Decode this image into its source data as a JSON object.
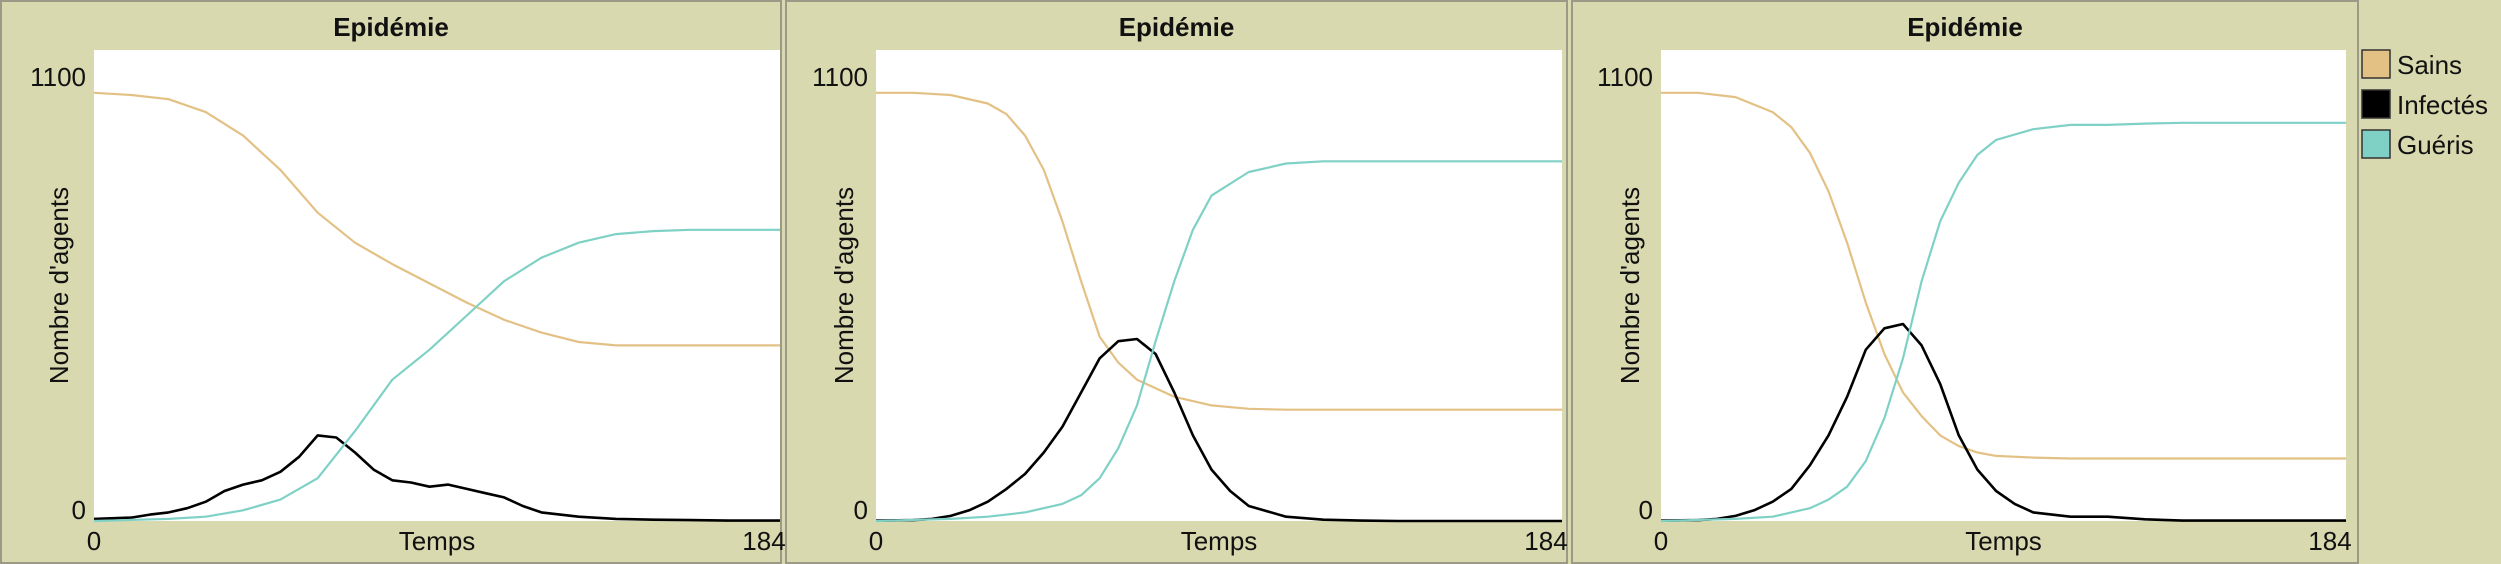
{
  "chart_data": [
    {
      "type": "line",
      "title": "Epidémie",
      "xlabel": "Temps",
      "ylabel": "Nombre d'agents",
      "xlim": [
        0,
        184
      ],
      "ylim": [
        0,
        1100
      ],
      "x_ticks": [
        "0",
        "184"
      ],
      "y_ticks": [
        "0",
        "1100"
      ],
      "series": [
        {
          "color": "#e3c185",
          "x": [
            0,
            10,
            20,
            30,
            40,
            50,
            60,
            70,
            80,
            90,
            100,
            110,
            120,
            130,
            140,
            150,
            160,
            170,
            184
          ],
          "values": [
            1000,
            995,
            985,
            955,
            900,
            820,
            720,
            650,
            600,
            555,
            510,
            470,
            440,
            418,
            410,
            410,
            410,
            410,
            410
          ]
        },
        {
          "color": "#000000",
          "x": [
            0,
            10,
            15,
            20,
            25,
            30,
            35,
            40,
            45,
            50,
            55,
            60,
            65,
            70,
            75,
            80,
            85,
            90,
            95,
            100,
            105,
            110,
            115,
            120,
            125,
            130,
            140,
            150,
            160,
            170,
            184
          ],
          "values": [
            5,
            8,
            15,
            20,
            30,
            45,
            70,
            85,
            95,
            115,
            150,
            200,
            195,
            160,
            120,
            95,
            90,
            80,
            85,
            75,
            65,
            55,
            35,
            20,
            15,
            10,
            5,
            3,
            2,
            1,
            1
          ]
        },
        {
          "color": "#7fd1c6",
          "x": [
            0,
            20,
            30,
            40,
            50,
            60,
            70,
            80,
            90,
            100,
            110,
            120,
            130,
            140,
            150,
            160,
            170,
            184
          ],
          "values": [
            0,
            5,
            10,
            25,
            50,
            100,
            210,
            330,
            400,
            480,
            560,
            615,
            650,
            670,
            677,
            680,
            680,
            680
          ]
        }
      ]
    },
    {
      "type": "line",
      "title": "Epidémie",
      "xlabel": "Temps",
      "ylabel": "Nombre d'agents",
      "xlim": [
        0,
        184
      ],
      "ylim": [
        0,
        1100
      ],
      "x_ticks": [
        "0",
        "184"
      ],
      "y_ticks": [
        "0",
        "1100"
      ],
      "series": [
        {
          "color": "#e3c185",
          "x": [
            0,
            10,
            20,
            30,
            35,
            40,
            45,
            50,
            55,
            60,
            65,
            70,
            75,
            80,
            85,
            90,
            100,
            110,
            120,
            130,
            140,
            150,
            184
          ],
          "values": [
            1000,
            1000,
            995,
            975,
            950,
            900,
            820,
            700,
            560,
            430,
            370,
            330,
            310,
            290,
            280,
            270,
            262,
            260,
            260,
            260,
            260,
            260,
            260
          ]
        },
        {
          "color": "#000000",
          "x": [
            0,
            10,
            15,
            20,
            25,
            30,
            35,
            40,
            45,
            50,
            55,
            60,
            65,
            70,
            75,
            80,
            85,
            90,
            95,
            100,
            110,
            120,
            130,
            140,
            184
          ],
          "values": [
            1,
            2,
            5,
            12,
            25,
            45,
            75,
            110,
            160,
            220,
            300,
            380,
            420,
            425,
            390,
            300,
            200,
            120,
            70,
            35,
            10,
            3,
            1,
            0,
            0
          ]
        },
        {
          "color": "#7fd1c6",
          "x": [
            0,
            20,
            30,
            40,
            50,
            55,
            60,
            65,
            70,
            75,
            80,
            85,
            90,
            100,
            110,
            120,
            130,
            140,
            150,
            160,
            184
          ],
          "values": [
            0,
            5,
            10,
            20,
            40,
            60,
            100,
            170,
            270,
            420,
            560,
            680,
            760,
            815,
            835,
            840,
            840,
            840,
            840,
            840,
            840
          ]
        }
      ]
    },
    {
      "type": "line",
      "title": "Epidémie",
      "xlabel": "Temps",
      "ylabel": "Nombre d'agents",
      "xlim": [
        0,
        184
      ],
      "ylim": [
        0,
        1100
      ],
      "x_ticks": [
        "0",
        "184"
      ],
      "y_ticks": [
        "0",
        "1100"
      ],
      "series": [
        {
          "color": "#e3c185",
          "x": [
            0,
            10,
            20,
            30,
            35,
            40,
            45,
            50,
            55,
            60,
            65,
            70,
            75,
            80,
            85,
            90,
            100,
            110,
            120,
            130,
            140,
            150,
            184
          ],
          "values": [
            1000,
            1000,
            990,
            955,
            920,
            860,
            770,
            650,
            510,
            390,
            300,
            245,
            200,
            175,
            160,
            152,
            148,
            146,
            146,
            146,
            146,
            146,
            146
          ]
        },
        {
          "color": "#000000",
          "x": [
            0,
            10,
            15,
            20,
            25,
            30,
            35,
            40,
            45,
            50,
            55,
            60,
            65,
            70,
            75,
            80,
            85,
            90,
            95,
            100,
            110,
            120,
            130,
            140,
            184
          ],
          "values": [
            1,
            2,
            5,
            12,
            25,
            45,
            75,
            130,
            200,
            290,
            400,
            450,
            460,
            410,
            320,
            200,
            120,
            70,
            40,
            20,
            10,
            10,
            4,
            1,
            1
          ]
        },
        {
          "color": "#7fd1c6",
          "x": [
            0,
            20,
            30,
            40,
            45,
            50,
            55,
            60,
            65,
            70,
            75,
            80,
            85,
            90,
            100,
            110,
            120,
            130,
            140,
            150,
            160,
            184
          ],
          "values": [
            0,
            5,
            10,
            30,
            50,
            80,
            140,
            240,
            380,
            560,
            700,
            790,
            855,
            890,
            915,
            925,
            925,
            928,
            930,
            930,
            930,
            930
          ]
        }
      ]
    }
  ],
  "legend": {
    "items": [
      {
        "label": "Sains",
        "color": "#e3c185"
      },
      {
        "label": "Infectés",
        "color": "#000000"
      },
      {
        "label": "Guéris",
        "color": "#7fd1c6"
      }
    ]
  }
}
